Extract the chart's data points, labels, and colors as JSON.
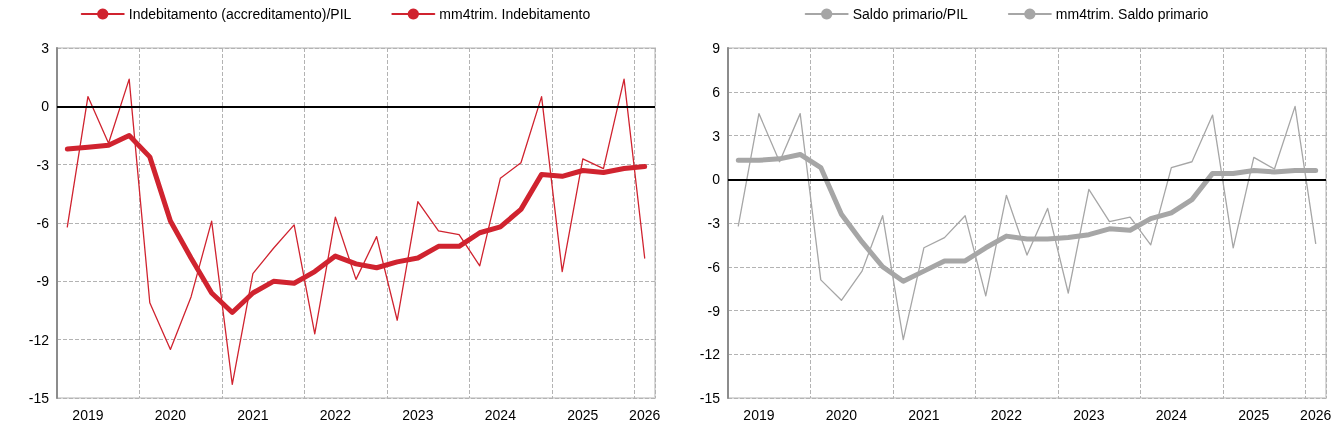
{
  "chart_data": [
    {
      "type": "line",
      "categories": [
        null,
        "2019",
        null,
        null,
        null,
        "2020",
        null,
        null,
        null,
        "2021",
        null,
        null,
        null,
        "2022",
        null,
        null,
        null,
        "2023",
        null,
        null,
        null,
        "2024",
        null,
        null,
        null,
        "2025",
        null,
        null,
        "2026"
      ],
      "series": [
        {
          "name": "Indebitamento (accreditamento)/PIL",
          "color": "#d0232f",
          "values": [
            -6.2,
            0.5,
            -1.9,
            1.4,
            -10.1,
            -12.5,
            -9.8,
            -5.9,
            -14.3,
            -8.6,
            -7.3,
            -6.1,
            -11.7,
            -5.7,
            -8.9,
            -6.7,
            -11.0,
            -4.9,
            -6.4,
            -6.6,
            -8.2,
            -3.7,
            -2.9,
            0.5,
            -8.5,
            -2.7,
            -3.2,
            1.4,
            -7.8
          ]
        },
        {
          "name": "mm4trim. Indebitamento",
          "color": "#d0232f",
          "values": [
            -2.2,
            -2.1,
            -2.0,
            -1.5,
            -2.6,
            -5.9,
            -7.8,
            -9.6,
            -10.6,
            -9.6,
            -9.0,
            -9.1,
            -8.5,
            -7.7,
            -8.1,
            -8.3,
            -8.0,
            -7.8,
            -7.2,
            -7.2,
            -6.5,
            -6.2,
            -5.3,
            -3.5,
            -3.6,
            -3.3,
            -3.4,
            -3.2,
            -3.1
          ]
        }
      ],
      "ylim": [
        -15,
        3
      ],
      "yticks": [
        -15,
        -12,
        -9,
        -6,
        -3,
        0,
        3
      ],
      "grid": true,
      "legend": "top",
      "marker": "none",
      "ref_lines": [
        {
          "axis": "y",
          "value": 0,
          "color": "#000000"
        }
      ]
    },
    {
      "type": "line",
      "categories": [
        null,
        "2019",
        null,
        null,
        null,
        "2020",
        null,
        null,
        null,
        "2021",
        null,
        null,
        null,
        "2022",
        null,
        null,
        null,
        "2023",
        null,
        null,
        null,
        "2024",
        null,
        null,
        null,
        "2025",
        null,
        null,
        "2026"
      ],
      "series": [
        {
          "name": "Saldo primario/PIL",
          "color": "#a6a6a6",
          "values": [
            -3.2,
            4.5,
            1.2,
            4.5,
            -6.9,
            -8.3,
            -6.3,
            -2.5,
            -11.0,
            -4.7,
            -4.0,
            -2.5,
            -8.0,
            -1.1,
            -5.2,
            -2.0,
            -7.8,
            -0.7,
            -2.9,
            -2.6,
            -4.5,
            0.8,
            1.2,
            4.4,
            -4.7,
            1.5,
            0.7,
            5.0,
            -4.4
          ]
        },
        {
          "name": "mm4trim. Saldo primario",
          "color": "#a6a6a6",
          "values": [
            1.3,
            1.3,
            1.4,
            1.7,
            0.8,
            -2.4,
            -4.3,
            -6.0,
            -7.0,
            -6.3,
            -5.6,
            -5.6,
            -4.7,
            -3.9,
            -4.1,
            -4.1,
            -4.0,
            -3.8,
            -3.4,
            -3.5,
            -2.7,
            -2.3,
            -1.4,
            0.4,
            0.4,
            0.6,
            0.5,
            0.6,
            0.6
          ]
        }
      ],
      "ylim": [
        -15,
        9
      ],
      "yticks": [
        -15,
        -12,
        -9,
        -6,
        -3,
        0,
        3,
        6,
        9
      ],
      "grid": true,
      "legend": "top",
      "marker": "none",
      "ref_lines": [
        {
          "axis": "y",
          "value": 0,
          "color": "#000000"
        }
      ]
    }
  ]
}
